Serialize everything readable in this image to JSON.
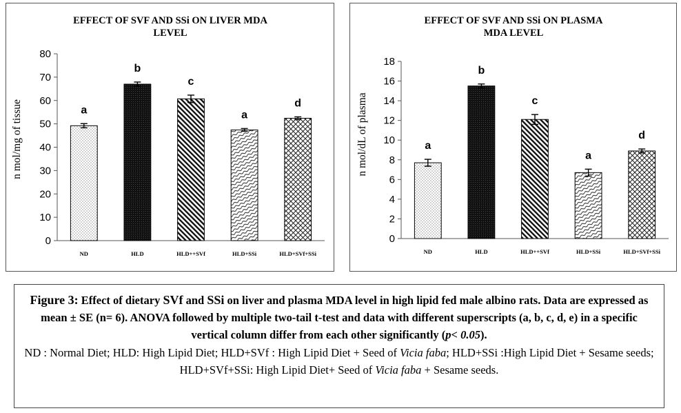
{
  "chart_data": [
    {
      "type": "bar",
      "title": [
        "EFFECT OF SVF AND SSi ON LIVER MDA",
        "LEVEL"
      ],
      "ylabel": "n mol/mg of tissue",
      "xlabel": "",
      "ylim": [
        0,
        80
      ],
      "yticks": [
        0,
        10,
        20,
        30,
        40,
        50,
        60,
        70,
        80
      ],
      "categories": [
        "ND",
        "HLD",
        "HLD++SVf",
        "HLD+SSi",
        "HLD+SVf+SSi"
      ],
      "values": [
        49.2,
        67.0,
        60.7,
        47.4,
        52.4
      ],
      "errors": [
        0.9,
        0.9,
        1.6,
        0.6,
        0.6
      ],
      "letters": [
        "a",
        "b",
        "c",
        "a",
        "d"
      ],
      "grid": false
    },
    {
      "type": "bar",
      "title": [
        "EFFECT OF SVF AND SSi ON PLASMA",
        "MDA LEVEL"
      ],
      "ylabel": "n mol/dL of plasma",
      "xlabel": "",
      "ylim": [
        0,
        18
      ],
      "yticks": [
        0,
        2,
        4,
        6,
        8,
        10,
        12,
        14,
        16,
        18
      ],
      "categories": [
        "ND",
        "HLD",
        "HLD++SVf",
        "HLD+SSi",
        "HLD+SVf+SSi"
      ],
      "values": [
        7.7,
        15.5,
        12.1,
        6.7,
        8.9
      ],
      "errors": [
        0.35,
        0.2,
        0.5,
        0.35,
        0.2
      ],
      "letters": [
        "a",
        "b",
        "c",
        "a",
        "d"
      ],
      "grid": false
    }
  ],
  "caption": {
    "figure_label": "Figure 3:",
    "line1_a": " Effect of dietary ",
    "svf": "SVf",
    "line1_b": " and ",
    "ssi": "SSi",
    "line1_c": " on liver and plasma MDA level in high lipid fed male albino rats. Data are expressed as mean ± SE (n= 6). ANOVA followed by multiple two-tail t-test and data with different superscripts (a, b, c, d, e) in a specific vertical column differ from each other significantly (",
    "p": "p",
    "lt": "< ",
    "pval": "0.05",
    "close": ").",
    "notes_1": "ND : Normal Diet; HLD: High Lipid Diet; HLD+",
    "notes_svf": "SVf",
    "notes_2": " : High Lipid Diet + Seed of ",
    "vicia1": "Vicia faba",
    "notes_3": "; HLD+SSi :High Lipid Diet + Sesame seeds; HLD+SVf+SSi: High Lipid Diet+ Seed of ",
    "vicia2": "Vicia faba",
    "notes_4": " + Sesame seeds."
  }
}
